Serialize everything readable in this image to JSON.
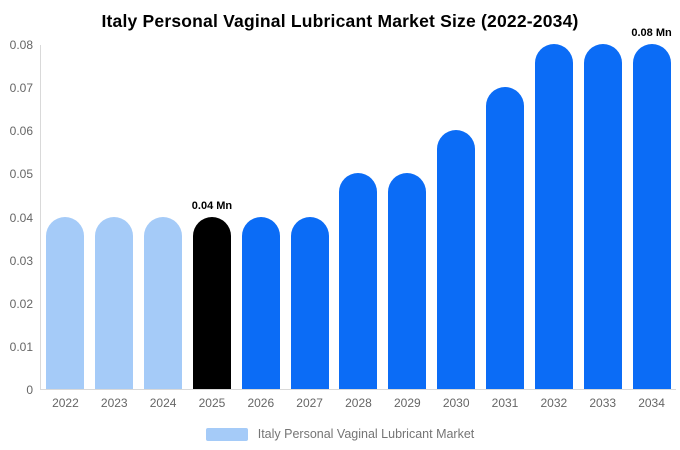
{
  "title": "Italy Personal Vaginal Lubricant Market Size (2022-2034)",
  "legend": {
    "label": "Italy Personal Vaginal Lubricant Market"
  },
  "colors": {
    "historical_bar": "#a5cbf8",
    "highlight_bar": "#000000",
    "forecast_bar": "#0b6cf6",
    "axis_line": "#d9d9d9",
    "axis_text": "#666666",
    "legend_text": "#757575",
    "background": "#ffffff"
  },
  "chart_data": {
    "type": "bar",
    "title": "Italy Personal Vaginal Lubricant Market Size (2022-2034)",
    "xlabel": "",
    "ylabel": "",
    "categories": [
      "2022",
      "2023",
      "2024",
      "2025",
      "2026",
      "2027",
      "2028",
      "2029",
      "2030",
      "2031",
      "2032",
      "2033",
      "2034"
    ],
    "values": [
      0.04,
      0.04,
      0.04,
      0.04,
      0.04,
      0.04,
      0.05,
      0.05,
      0.06,
      0.07,
      0.08,
      0.08,
      0.08
    ],
    "bar_roles": [
      "historical",
      "historical",
      "historical",
      "highlight",
      "forecast",
      "forecast",
      "forecast",
      "forecast",
      "forecast",
      "forecast",
      "forecast",
      "forecast",
      "forecast"
    ],
    "annotations": [
      {
        "category": "2025",
        "index": 3,
        "text": "0.04 Mn"
      },
      {
        "category": "2034",
        "index": 12,
        "text": "0.08 Mn"
      }
    ],
    "y_ticks": [
      "0",
      "0.01",
      "0.02",
      "0.03",
      "0.04",
      "0.05",
      "0.06",
      "0.07",
      "0.08"
    ],
    "y_tick_values": [
      0,
      0.01,
      0.02,
      0.03,
      0.04,
      0.05,
      0.06,
      0.07,
      0.08
    ],
    "ylim": [
      0,
      0.08
    ],
    "grid": false,
    "legend_entries": [
      "Italy Personal Vaginal Lubricant Market"
    ],
    "legend_position": "bottom"
  }
}
